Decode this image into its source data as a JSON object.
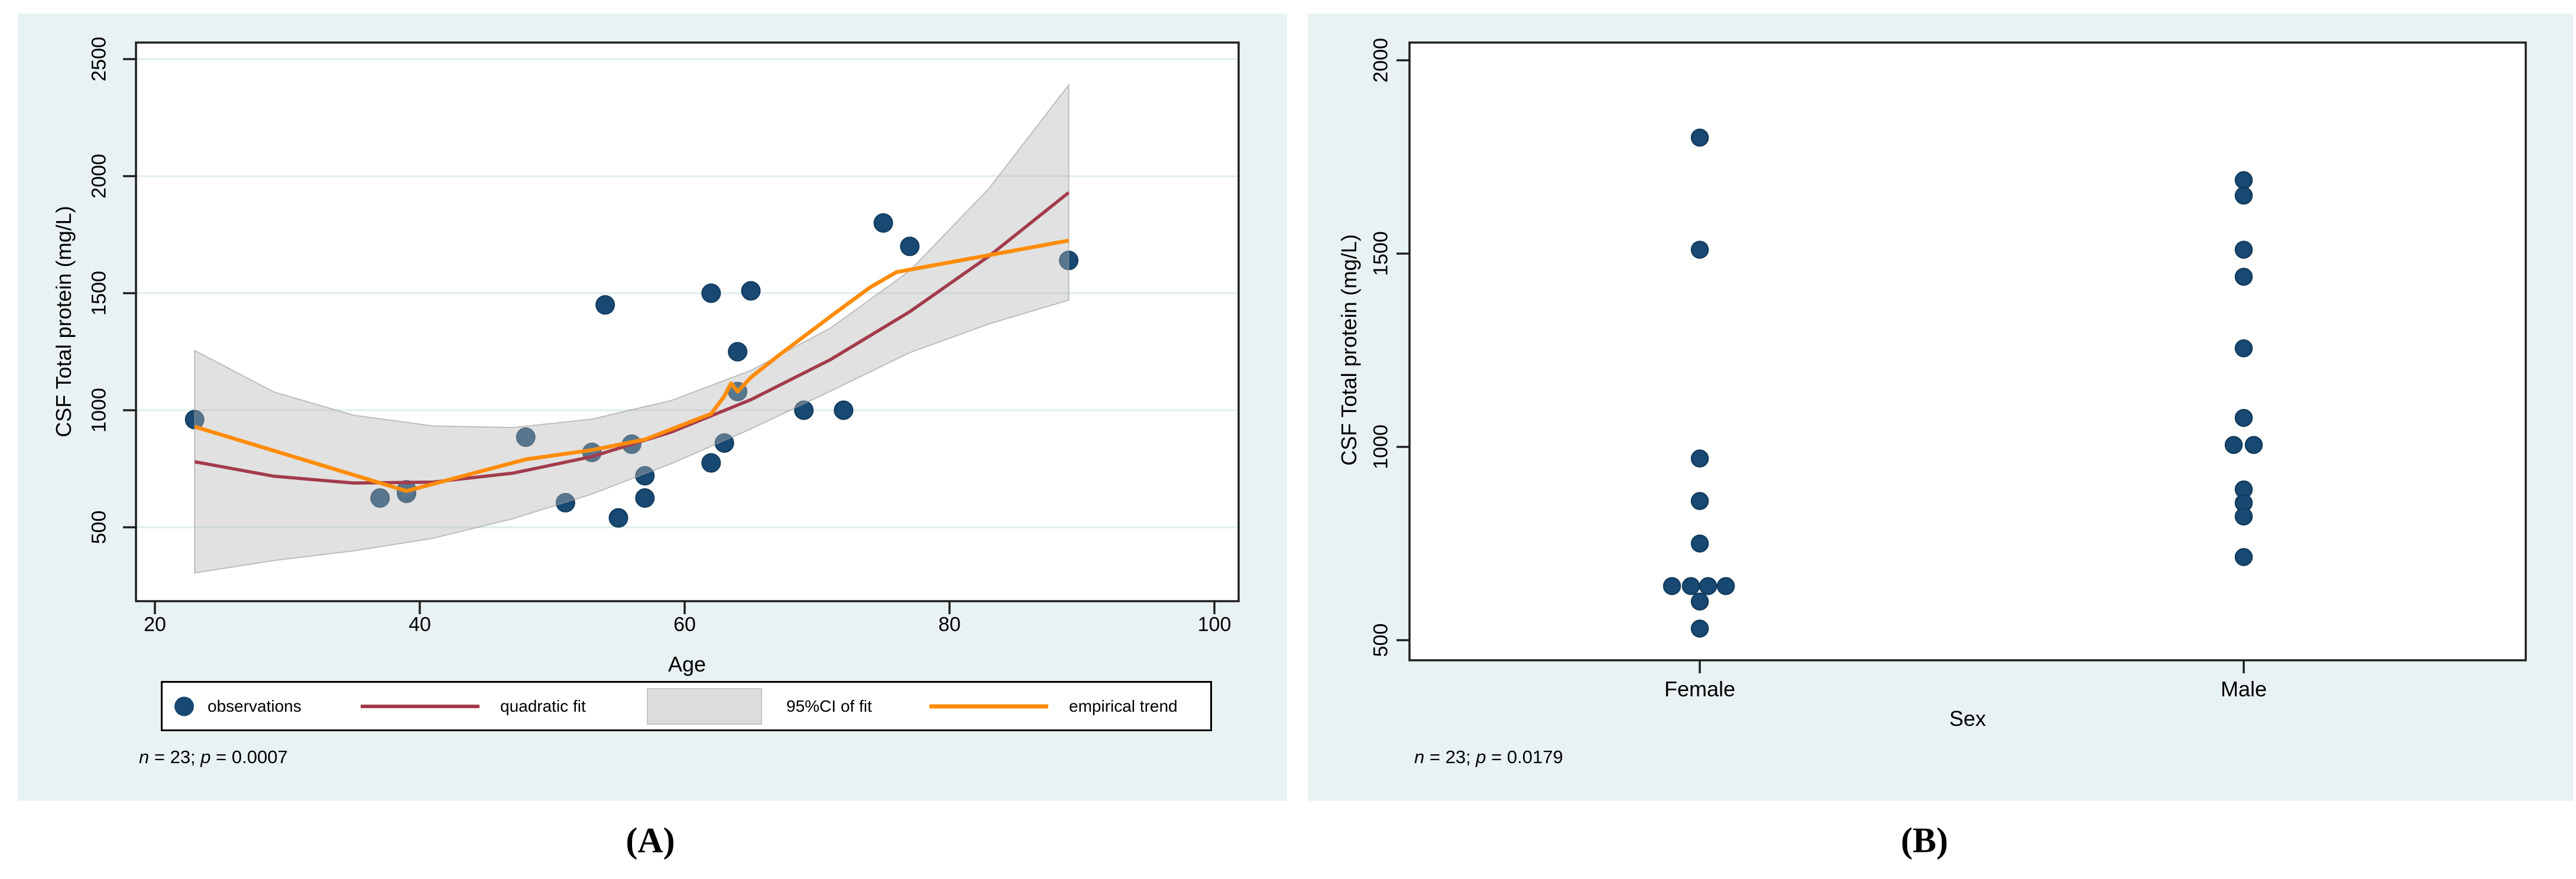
{
  "figure": {
    "caption_a": "(A)",
    "caption_b": "(B)"
  },
  "colors": {
    "page_bg": "#ffffff",
    "panel_bg": "#e9f2f3",
    "plot_bg": "#ffffff",
    "gridline": "#ddedee",
    "axis": "#1f1f1f",
    "observation_fill": "#174972",
    "observation_stroke": "#123c5e",
    "quadratic_fit": "#a23b4b",
    "empirical_trend": "#ff8c0a",
    "ci_band_fill": "rgba(183,183,183,0.41)",
    "ci_band_edge": "rgba(150,150,150,0.55)",
    "legend_swatch": "#dcdcdc",
    "text": "#000000"
  },
  "panel_a": {
    "ylabel": "CSF Total protein (mg/L)",
    "xlabel": "Age",
    "note_parts": [
      "n",
      " = 23; ",
      "p",
      " = 0.0007"
    ],
    "legend": [
      {
        "symbol": "circle-marker",
        "label": "observations"
      },
      {
        "symbol": "maroon-line",
        "label": "quadratic fit"
      },
      {
        "symbol": "gray-swatch",
        "label": "95%CI of fit"
      },
      {
        "symbol": "orange-line",
        "label": "empirical trend"
      }
    ],
    "chart_data": {
      "type": "scatter",
      "xlabel": "Age",
      "ylabel": "CSF Total protein (mg/L)",
      "xlim": [
        18.5,
        102
      ],
      "ylim": [
        185,
        2570
      ],
      "x_ticks": [
        20,
        40,
        60,
        80,
        100
      ],
      "y_ticks": [
        500,
        1000,
        1500,
        2000,
        2500
      ],
      "grid": "horizontal",
      "n": 23,
      "p_value": 0.0007,
      "points": [
        [
          23,
          960
        ],
        [
          37,
          625
        ],
        [
          39,
          645
        ],
        [
          39,
          660
        ],
        [
          48,
          885
        ],
        [
          51,
          605
        ],
        [
          53,
          820
        ],
        [
          54,
          1450
        ],
        [
          55,
          540
        ],
        [
          56,
          855
        ],
        [
          57,
          720
        ],
        [
          57,
          625
        ],
        [
          62,
          775
        ],
        [
          62,
          1500
        ],
        [
          63,
          860
        ],
        [
          64,
          1080
        ],
        [
          64,
          1250
        ],
        [
          65,
          1510
        ],
        [
          69,
          1000
        ],
        [
          72,
          1000
        ],
        [
          75,
          1800
        ],
        [
          77,
          1700
        ],
        [
          89,
          1640
        ]
      ],
      "quadratic_fit": {
        "x": [
          23,
          29,
          35,
          41,
          47,
          53,
          59,
          65,
          71,
          77,
          83,
          89
        ],
        "y": [
          780,
          718,
          689,
          693,
          731,
          802,
          907,
          1045,
          1216,
          1421,
          1659,
          1930
        ]
      },
      "ci_band": {
        "x": [
          23,
          29,
          35,
          41,
          47,
          53,
          59,
          65,
          71,
          77,
          83,
          89
        ],
        "upper": [
          1255,
          1078,
          979,
          933,
          926,
          962,
          1042,
          1170,
          1351,
          1596,
          1949,
          2390
        ],
        "lower": [
          305,
          358,
          399,
          453,
          536,
          642,
          772,
          920,
          1081,
          1246,
          1369,
          1470
        ]
      },
      "empirical_trend": [
        [
          23,
          930
        ],
        [
          39,
          655
        ],
        [
          48,
          790
        ],
        [
          53,
          830
        ],
        [
          57,
          875
        ],
        [
          62,
          985
        ],
        [
          63,
          1060
        ],
        [
          63.5,
          1115
        ],
        [
          64,
          1080
        ],
        [
          65,
          1140
        ],
        [
          67,
          1230
        ],
        [
          71,
          1400
        ],
        [
          74,
          1525
        ],
        [
          76,
          1590
        ],
        [
          89,
          1725
        ]
      ]
    }
  },
  "panel_b": {
    "ylabel": "CSF Total protein (mg/L)",
    "xlabel": "Sex",
    "note_parts": [
      "n",
      " = 23; ",
      "p",
      " = 0.0179"
    ],
    "chart_data": {
      "type": "strip",
      "xlabel": "Sex",
      "ylabel": "CSF Total protein (mg/L)",
      "ylim": [
        450,
        2045
      ],
      "y_ticks": [
        500,
        1000,
        1500,
        2000
      ],
      "grid": "off",
      "n": 23,
      "p_value": 0.0179,
      "categories": [
        "Female",
        "Male"
      ],
      "series": [
        {
          "name": "Female",
          "values": [
            1800,
            1510,
            970,
            860,
            750,
            640,
            640,
            640,
            640,
            600,
            530
          ],
          "jitter": [
            0,
            0,
            0,
            0,
            0,
            -47,
            -15,
            14,
            44,
            0,
            0
          ]
        },
        {
          "name": "Male",
          "values": [
            1690,
            1650,
            1510,
            1440,
            1255,
            1075,
            1005,
            1005,
            890,
            855,
            820,
            715
          ],
          "jitter": [
            0,
            0,
            0,
            0,
            0,
            0,
            -17,
            17,
            0,
            0,
            0,
            0
          ]
        }
      ]
    }
  }
}
